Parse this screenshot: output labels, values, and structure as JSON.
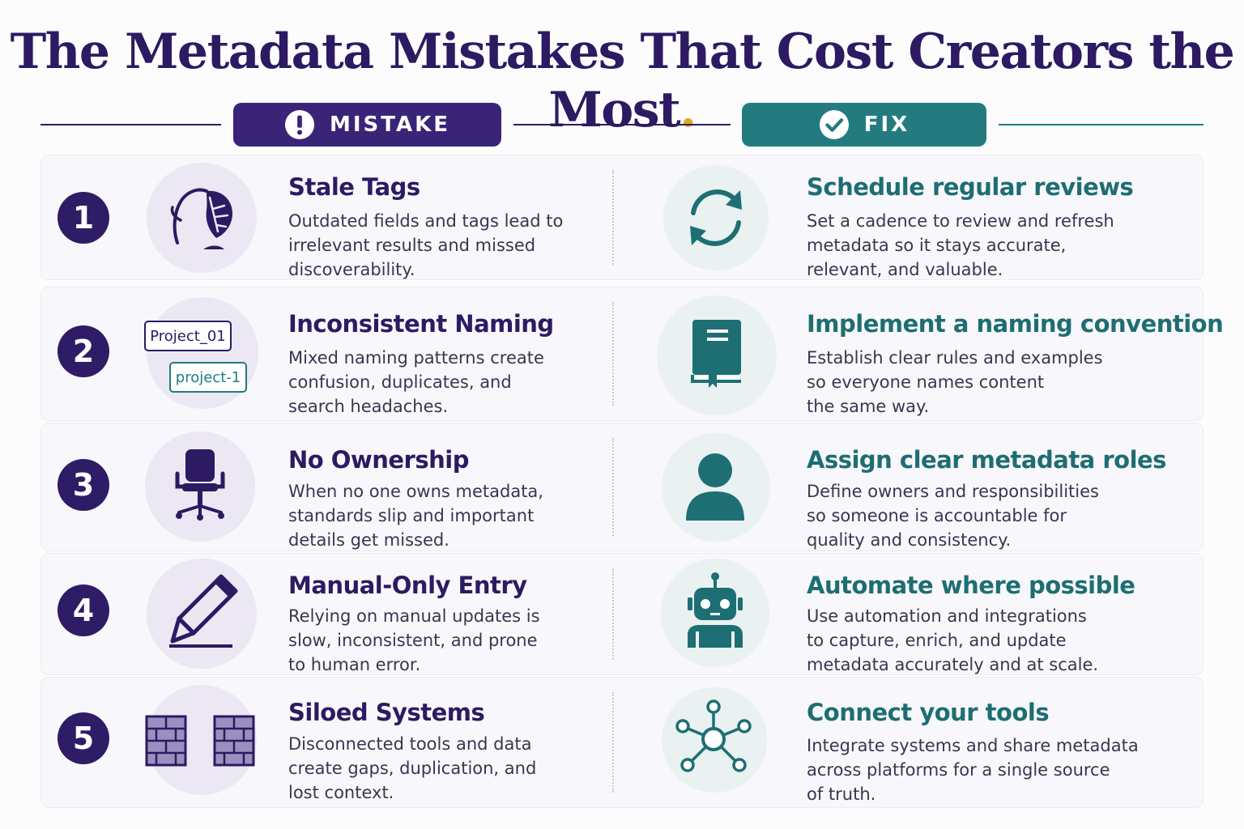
{
  "title": "The Metadata Mistakes That Cost Creators the Most",
  "title_dot": ".",
  "headers": {
    "mistake": {
      "label": "MISTAKE",
      "icon": "exclamation-circle-icon",
      "color": "#3a2478"
    },
    "fix": {
      "label": "FIX",
      "icon": "check-circle-icon",
      "color": "#237b80"
    }
  },
  "rows": [
    {
      "number": "1",
      "mistake": {
        "title": "Stale Tags",
        "icon": "wilted-flower-icon",
        "lines": [
          "Outdated fields and tags lead to",
          "irrelevant results and missed",
          "discoverability."
        ]
      },
      "fix": {
        "title": "Schedule regular reviews",
        "icon": "refresh-cycle-icon",
        "lines": [
          "Set a cadence to review and refresh",
          "metadata so it stays accurate,",
          "relevant, and valuable."
        ]
      }
    },
    {
      "number": "2",
      "mistake": {
        "title": "Inconsistent Naming",
        "icon": "name-tags-icon",
        "tags": [
          "Project_01",
          "project-1"
        ],
        "lines": [
          "Mixed naming patterns create",
          "confusion, duplicates, and",
          "search headaches."
        ]
      },
      "fix": {
        "title": "Implement a naming convention",
        "icon": "rule-book-icon",
        "lines": [
          "Establish clear rules and examples",
          "so everyone names content",
          "the same way."
        ]
      }
    },
    {
      "number": "3",
      "mistake": {
        "title": "No Ownership",
        "icon": "empty-chair-icon",
        "lines": [
          "When no one owns metadata,",
          "standards slip and important",
          "details get missed."
        ]
      },
      "fix": {
        "title": "Assign clear metadata roles",
        "icon": "person-icon",
        "lines": [
          "Define owners and responsibilities",
          "so someone is accountable for",
          "quality and consistency."
        ]
      }
    },
    {
      "number": "4",
      "mistake": {
        "title": "Manual-Only Entry",
        "icon": "pencil-icon",
        "lines": [
          "Relying on manual updates is",
          "slow, inconsistent, and prone",
          "to human error."
        ]
      },
      "fix": {
        "title": "Automate where possible",
        "icon": "robot-icon",
        "lines": [
          "Use automation and integrations",
          "to capture, enrich, and update",
          "metadata accurately and at scale."
        ]
      }
    },
    {
      "number": "5",
      "mistake": {
        "title": "Siloed Systems",
        "icon": "brick-walls-icon",
        "lines": [
          "Disconnected tools and data",
          "create gaps, duplication, and",
          "lost context."
        ]
      },
      "fix": {
        "title": "Connect your tools",
        "icon": "network-hub-icon",
        "lines": [
          "Integrate systems and share metadata",
          "across platforms for a single source",
          "of truth."
        ]
      }
    }
  ],
  "colors": {
    "purple": "#2c1a63",
    "teal": "#1e7d7e",
    "accent_dot": "#e5a823"
  }
}
